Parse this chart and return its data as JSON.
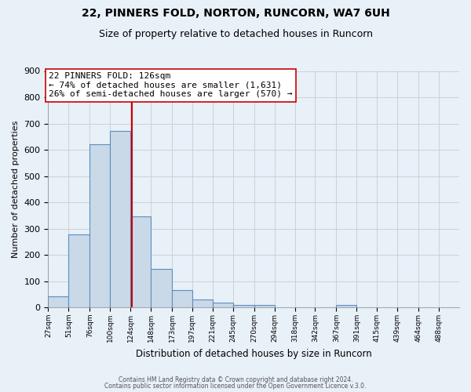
{
  "title": "22, PINNERS FOLD, NORTON, RUNCORN, WA7 6UH",
  "subtitle": "Size of property relative to detached houses in Runcorn",
  "xlabel": "Distribution of detached houses by size in Runcorn",
  "ylabel": "Number of detached properties",
  "bar_edges": [
    27,
    51,
    76,
    100,
    124,
    148,
    173,
    197,
    221,
    245,
    270,
    294,
    318,
    342,
    367,
    391,
    415,
    439,
    464,
    488,
    512
  ],
  "bar_heights": [
    43,
    278,
    622,
    671,
    347,
    148,
    65,
    30,
    18,
    10,
    10,
    0,
    0,
    0,
    8,
    0,
    0,
    0,
    0,
    0
  ],
  "bar_color": "#c9d9e8",
  "bar_edge_color": "#5a8fc0",
  "property_value": 126,
  "vline_color": "#cc0000",
  "annotation_line1": "22 PINNERS FOLD: 126sqm",
  "annotation_line2": "← 74% of detached houses are smaller (1,631)",
  "annotation_line3": "26% of semi-detached houses are larger (570) →",
  "annotation_box_edge_color": "#cc0000",
  "annotation_box_face_color": "#ffffff",
  "ylim": [
    0,
    900
  ],
  "yticks": [
    0,
    100,
    200,
    300,
    400,
    500,
    600,
    700,
    800,
    900
  ],
  "footer_line1": "Contains HM Land Registry data © Crown copyright and database right 2024.",
  "footer_line2": "Contains public sector information licensed under the Open Government Licence v.3.0.",
  "grid_color": "#cccccc",
  "background_color": "#e8f0f8",
  "annotation_fontsize": 8.0,
  "title_fontsize": 10,
  "subtitle_fontsize": 9
}
